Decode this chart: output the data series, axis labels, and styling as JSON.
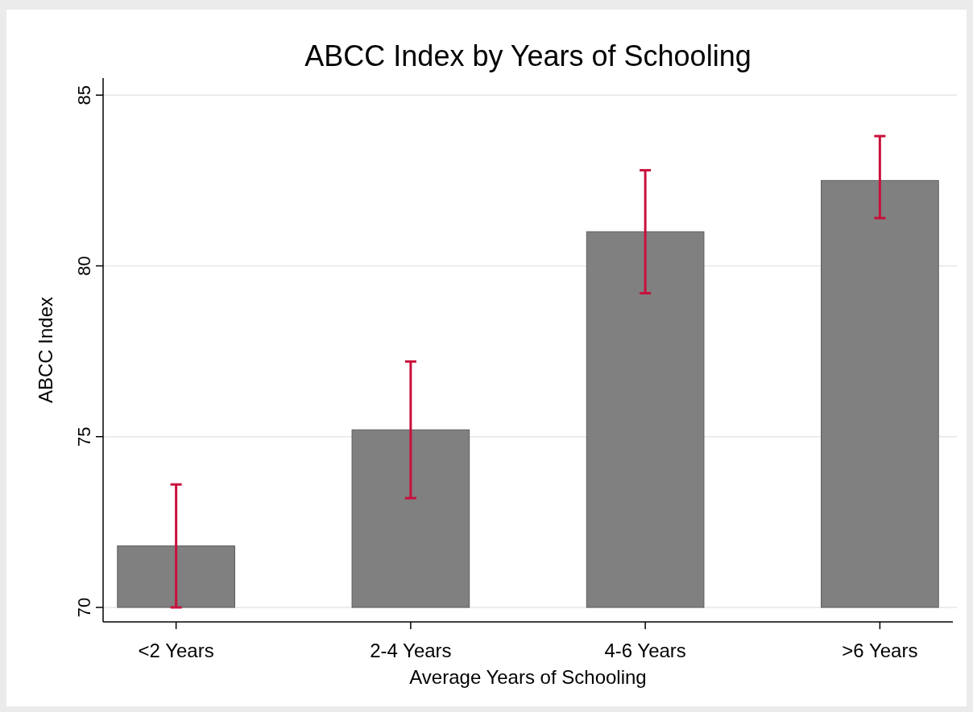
{
  "chart_data": {
    "type": "bar",
    "title": "ABCC Index by Years of Schooling",
    "xlabel": "Average Years of Schooling",
    "ylabel": "ABCC Index",
    "categories": [
      "<2 Years",
      "2-4 Years",
      "4-6 Years",
      ">6 Years"
    ],
    "series": [
      {
        "color": "#808080",
        "values": [
          71.8,
          75.2,
          81.0,
          82.5
        ],
        "errors": [
          [
            70.0,
            73.6
          ],
          [
            73.2,
            77.2
          ],
          [
            79.2,
            82.8
          ],
          [
            81.4,
            83.8
          ]
        ]
      }
    ],
    "ylim": [
      70,
      85.5
    ],
    "yticks": [
      70,
      75,
      80,
      85
    ],
    "grid": "y"
  }
}
